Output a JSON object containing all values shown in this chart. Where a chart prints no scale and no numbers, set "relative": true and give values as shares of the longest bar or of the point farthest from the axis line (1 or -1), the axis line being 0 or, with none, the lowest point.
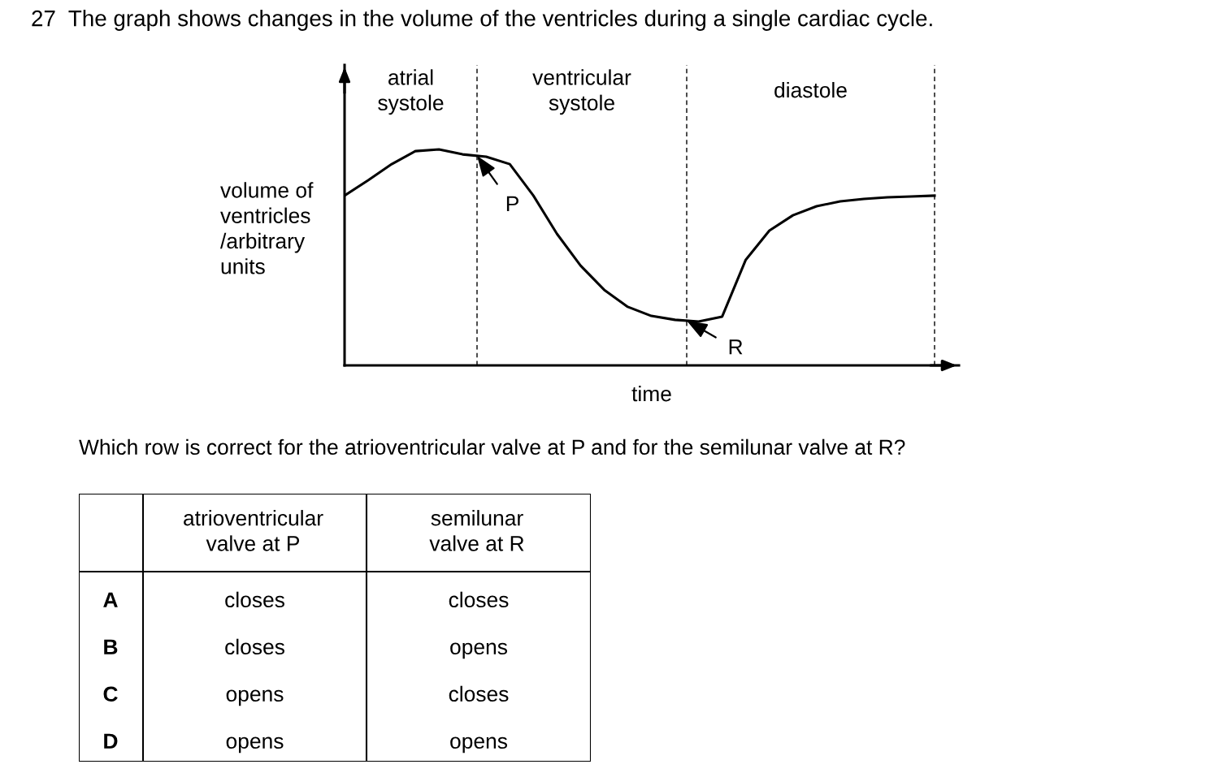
{
  "chart_data": [
    {
      "type": "line",
      "relative": true,
      "title": "27  The graph shows changes in the volume of the ventricles during a single cardiac cycle.",
      "ylabel": "volume of\nventricles\n/arbitrary\nunits",
      "xlabel": "time",
      "color": "#000000",
      "marker": "none",
      "line_style": "solid",
      "categories": [
        null,
        null,
        null,
        null,
        null,
        null,
        null,
        null,
        null,
        null,
        null,
        null,
        null,
        null,
        null,
        null,
        null,
        null,
        null,
        null,
        null,
        null,
        null,
        null,
        null,
        null
      ],
      "values": [
        0.786,
        0.857,
        0.932,
        0.992,
        1.0,
        0.977,
        0.966,
        0.932,
        0.786,
        0.609,
        0.462,
        0.35,
        0.271,
        0.229,
        0.211,
        0.203,
        0.226,
        0.489,
        0.624,
        0.695,
        0.737,
        0.759,
        0.771,
        0.778,
        0.782,
        0.786
      ],
      "annotations": [
        "atrial\nsystole",
        "ventricular\nsystole",
        "diastole",
        "P",
        "R"
      ]
    },
    {
      "type": "other",
      "title": "Which row is correct for the atrioventricular valve at P and for the semilunar valve at R?",
      "annotations": [
        "atrioventricular\nvalve at P",
        "semilunar\nvalve at R",
        "A",
        "closes",
        "closes",
        "B",
        "closes",
        "opens",
        "C",
        "opens",
        "closes",
        "D",
        "opens",
        "opens"
      ]
    }
  ]
}
